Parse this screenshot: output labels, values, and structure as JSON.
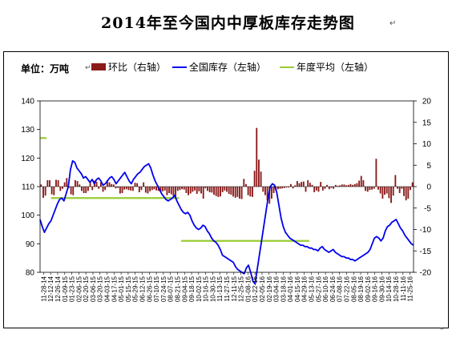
{
  "title": "2014年至今国内中厚板库存走势图",
  "unit_label": "单位：万吨",
  "chart_data": {
    "type": "bar+line",
    "title": "2014年至今国内中厚板库存走势图",
    "legend": [
      "环比（右轴）",
      "全国库存（左轴）",
      "年度平均（左轴）"
    ],
    "legend_position": "top",
    "colors": {
      "bar": "#8B1A1A",
      "line": "#0000EE",
      "avg": "#99CC33"
    },
    "y_left": {
      "min": 80,
      "max": 140,
      "step": 10,
      "ticks": [
        80,
        90,
        100,
        110,
        120,
        130,
        140
      ]
    },
    "y_right": {
      "min": -20,
      "max": 20,
      "step": 5,
      "ticks": [
        -20,
        -15,
        -10,
        -5,
        0,
        5,
        10,
        15,
        20
      ]
    },
    "x_tick_labels": [
      "11-28-14",
      "12-12-14",
      "12-26-14",
      "01-09-15",
      "01-23-15",
      "02-06-15",
      "02-20-15",
      "03-06-15",
      "03-20-15",
      "04-03-15",
      "04-17-15",
      "05-01-15",
      "05-15-15",
      "05-29-15",
      "06-12-15",
      "06-26-15",
      "07-10-15",
      "07-24-15",
      "08-07-15",
      "08-21-15",
      "09-04-15",
      "09-18-15",
      "10-02-15",
      "10-16-15",
      "10-30-15",
      "11-13-15",
      "11-27-15",
      "12-11-15",
      "12-25-15",
      "01-08-16",
      "01-22-16",
      "02-05-16",
      "02-19-16",
      "03-04-16",
      "03-18-16",
      "04-01-16",
      "04-15-16",
      "04-29-16",
      "05-13-16",
      "05-27-16",
      "06-10-16",
      "06-24-16",
      "07-08-16",
      "07-22-16",
      "08-05-16",
      "08-19-16",
      "09-02-16",
      "09-16-16",
      "09-30-16",
      "10-14-16",
      "10-28-16",
      "11-11-16",
      "11-25-16"
    ],
    "series": [
      {
        "name": "全国库存（左轴）",
        "axis": "left",
        "type": "line",
        "values": [
          98.5,
          96.0,
          94.0,
          95.5,
          97.0,
          98.0,
          100.0,
          102.0,
          104.0,
          105.5,
          106.0,
          105.0,
          107.5,
          110.0,
          116.0,
          119.0,
          118.5,
          116.5,
          115.5,
          114.5,
          113.0,
          113.5,
          112.5,
          111.5,
          112.5,
          111.0,
          112.5,
          113.0,
          112.0,
          110.5,
          111.0,
          112.0,
          113.0,
          113.5,
          112.5,
          111.0,
          112.0,
          113.0,
          114.0,
          115.0,
          113.5,
          112.0,
          111.0,
          112.5,
          113.5,
          114.5,
          115.0,
          116.0,
          117.0,
          117.5,
          118.0,
          116.5,
          114.0,
          112.0,
          110.5,
          109.0,
          107.5,
          106.5,
          105.5,
          105.0,
          105.5,
          106.0,
          107.0,
          105.0,
          103.5,
          102.0,
          101.0,
          100.5,
          101.0,
          100.0,
          98.0,
          96.5,
          95.5,
          95.0,
          95.5,
          96.5,
          96.0,
          94.5,
          93.5,
          92.0,
          91.0,
          90.5,
          89.5,
          88.0,
          86.0,
          85.5,
          85.0,
          84.5,
          84.0,
          83.5,
          82.0,
          81.0,
          80.5,
          80.0,
          79.5,
          81.5,
          82.5,
          80.0,
          77.0,
          76.0,
          81.0,
          86.0,
          91.0,
          96.0,
          101.0,
          106.0,
          110.0,
          111.0,
          110.5,
          108.0,
          103.5,
          99.0,
          96.0,
          94.0,
          93.0,
          92.0,
          91.5,
          91.0,
          90.5,
          90.0,
          89.5,
          89.5,
          89.0,
          89.0,
          88.5,
          88.5,
          88.0,
          88.0,
          87.5,
          88.5,
          89.0,
          88.0,
          87.5,
          87.0,
          87.5,
          88.0,
          87.0,
          86.5,
          86.0,
          85.5,
          85.5,
          85.0,
          85.0,
          84.5,
          84.5,
          84.0,
          84.5,
          85.0,
          85.5,
          86.0,
          86.5,
          87.0,
          88.0,
          90.0,
          92.0,
          92.5,
          92.0,
          91.0,
          92.0,
          94.5,
          96.0,
          96.5,
          97.5,
          98.0,
          98.5,
          97.0,
          95.5,
          94.5,
          93.0,
          92.0,
          91.0,
          90.0,
          89.5
        ]
      },
      {
        "name": "年度平均（左轴）",
        "axis": "left",
        "type": "line-segments",
        "segments": [
          {
            "from_index": 0,
            "to_index": 3,
            "value": 127.0
          },
          {
            "from_index": 5,
            "to_index": 64,
            "value": 106.0
          },
          {
            "from_index": 65,
            "to_index": 124,
            "value": 91.0
          }
        ]
      },
      {
        "name": "环比（右轴）",
        "axis": "right",
        "type": "bar",
        "values": [
          0.5,
          -2.6,
          -2.1,
          1.5,
          1.5,
          -1.8,
          -2.0,
          1.6,
          1.5,
          -1.0,
          -0.5,
          1.0,
          2.0,
          -0.3,
          -1.8,
          -2.0,
          1.5,
          1.3,
          0.5,
          -1.0,
          -1.5,
          -1.5,
          -1.0,
          1.0,
          -0.8,
          1.4,
          1.1,
          -0.5,
          1.0,
          -1.2,
          -0.8,
          1.5,
          1.0,
          0.6,
          0.5,
          -0.4,
          -0.3,
          -1.6,
          -1.5,
          -0.7,
          -0.6,
          -0.8,
          -0.9,
          -1.0,
          0.9,
          0.8,
          -1.3,
          -0.8,
          1.0,
          -1.4,
          -1.6,
          -1.1,
          -0.8,
          -0.6,
          -0.9,
          -1.0,
          -1.2,
          -1.1,
          -0.9,
          -2.0,
          -1.5,
          -1.8,
          -2.2,
          -2.4,
          -1.0,
          -0.8,
          -0.6,
          -0.7,
          -1.5,
          -2.0,
          -1.6,
          -1.2,
          -0.9,
          -1.7,
          -1.1,
          -1.6,
          -2.8,
          -0.4,
          -1.0,
          -1.3,
          -1.4,
          -1.9,
          -2.2,
          -2.4,
          -2.3,
          -1.3,
          -0.9,
          -1.2,
          -1.7,
          -1.9,
          -2.3,
          -2.6,
          -2.4,
          -2.8,
          -2.9,
          1.8,
          0.6,
          -2.0,
          -2.3,
          -2.4,
          3.7,
          13.7,
          6.3,
          3.5,
          -1.2,
          -2.0,
          -3.2,
          -4.0,
          -2.8,
          -1.5,
          -0.9,
          -0.6,
          -0.5,
          -0.4,
          -0.3,
          -0.2,
          -0.2,
          0.6,
          -0.4,
          0.3,
          1.3,
          0.8,
          1.1,
          1.2,
          -1.2,
          1.5,
          0.9,
          0.4,
          -1.3,
          -0.9,
          -1.2,
          1.1,
          -0.9,
          -0.5,
          0.4,
          -0.6,
          -0.3,
          -0.5,
          0.4,
          0.2,
          0.3,
          0.5,
          0.5,
          0.3,
          0.4,
          0.6,
          0.4,
          0.6,
          0.8,
          1.4,
          2.5,
          1.5,
          -1.0,
          -1.2,
          -0.8,
          -0.7,
          -0.5,
          6.5,
          -0.7,
          -1.6,
          -2.8,
          -1.9,
          -1.6,
          -2.7,
          -3.8,
          -2.1,
          2.7,
          -0.5,
          -1.5,
          -0.5,
          -2.2,
          -3.2,
          -2.8,
          -0.8,
          1.0
        ]
      }
    ],
    "grid": false
  }
}
